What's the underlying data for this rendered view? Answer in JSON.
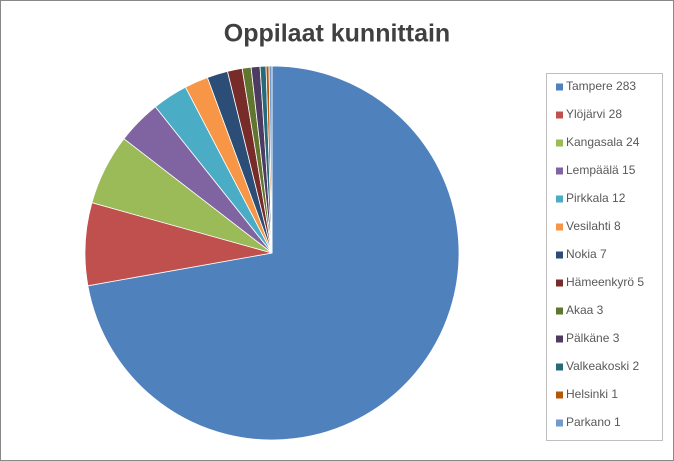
{
  "chart_data": {
    "type": "pie",
    "title": "Oppilaat kunnittain",
    "categories": [
      "Tampere 283",
      "Ylöjärvi 28",
      "Kangasala 24",
      "Lempäälä 15",
      "Pirkkala 12",
      "Vesilahti 8",
      "Nokia 7",
      "Hämeenkyrö 5",
      "Akaa 3",
      "Pälkäne 3",
      "Valkeakoski 2",
      "Helsinki 1",
      "Parkano 1"
    ],
    "values": [
      283,
      28,
      24,
      15,
      12,
      8,
      7,
      5,
      3,
      3,
      2,
      1,
      1
    ],
    "colors": [
      "#4f81bd",
      "#c0504d",
      "#9bbb59",
      "#8064a2",
      "#4bacc6",
      "#f79646",
      "#2c4d75",
      "#772c2a",
      "#5f7530",
      "#4d3b62",
      "#276a7c",
      "#b65708",
      "#729aca"
    ],
    "legend": "right"
  }
}
